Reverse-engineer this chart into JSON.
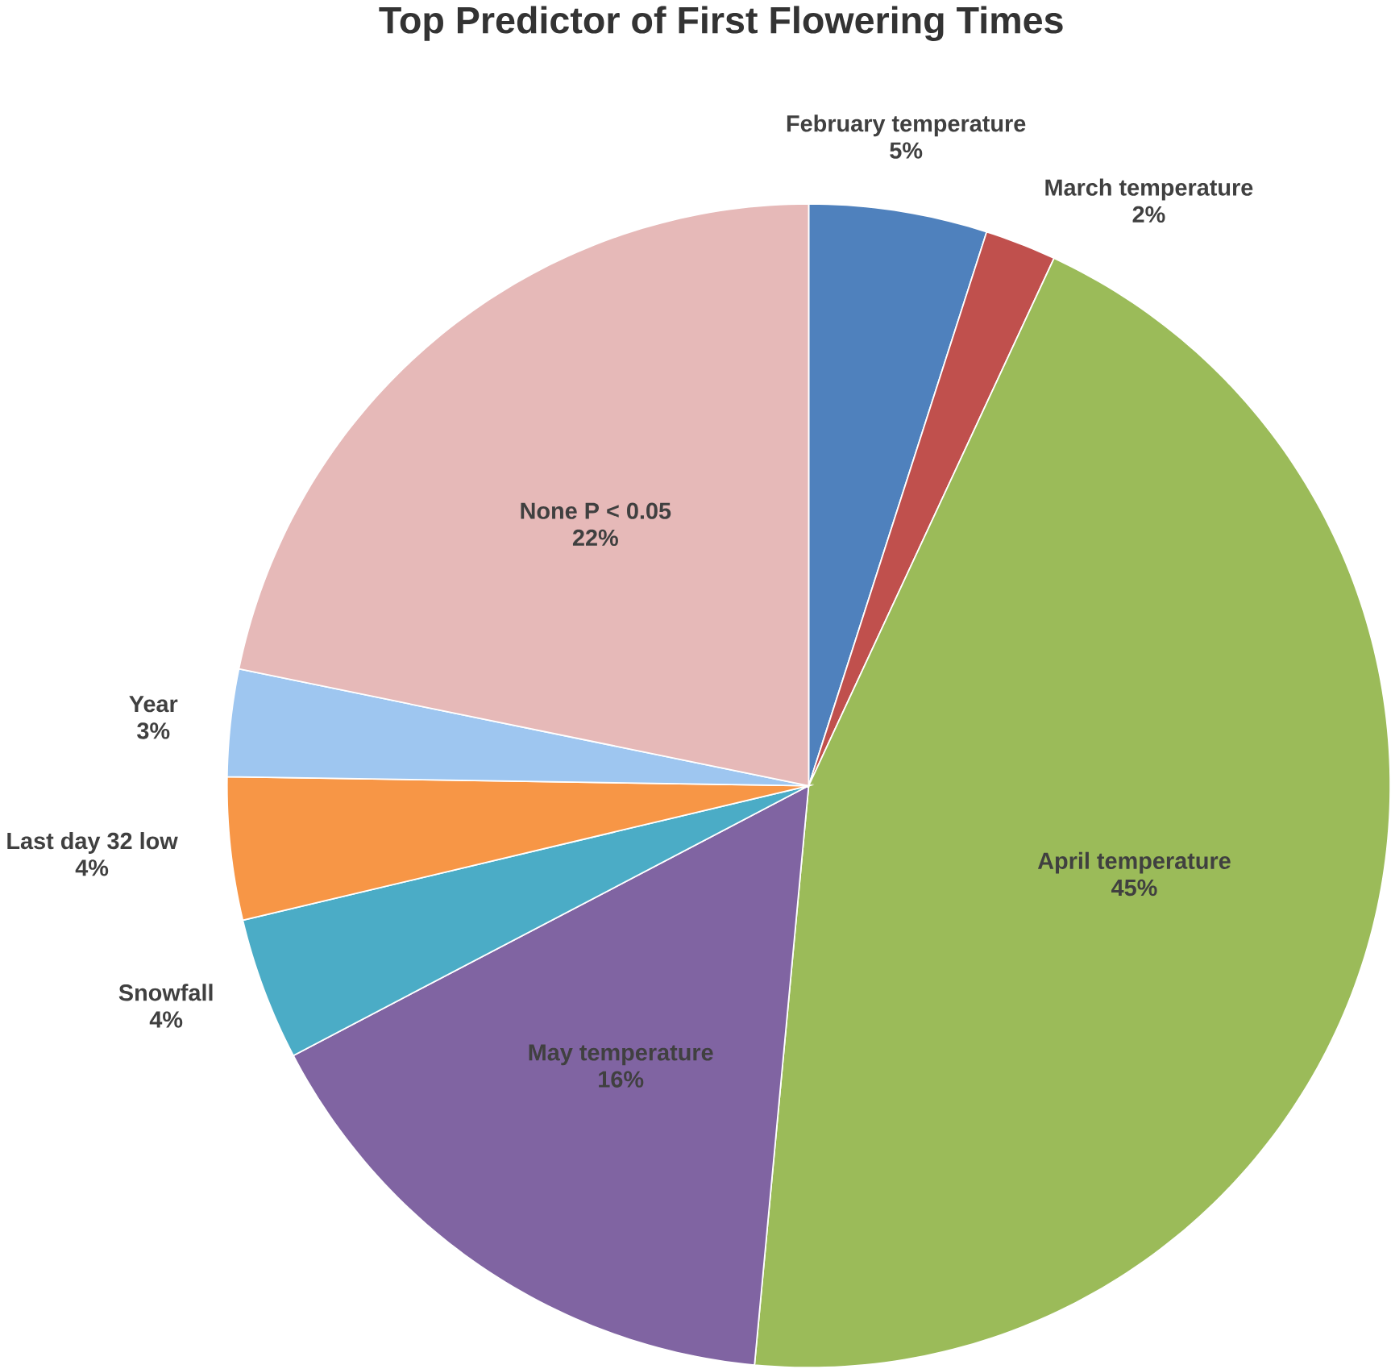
{
  "chart_data": {
    "type": "pie",
    "title": "Top Predictor of First Flowering Times",
    "categories": [
      "February temperature",
      "March temperature",
      "April temperature",
      "May temperature",
      "Snowfall",
      "Last day 32 low",
      "Year",
      "None P < 0.05"
    ],
    "values": [
      5,
      2,
      45,
      16,
      4,
      4,
      3,
      22
    ],
    "value_labels": [
      "5%",
      "2%",
      "45%",
      "16%",
      "4%",
      "4%",
      "3%",
      "22%"
    ],
    "colors": [
      "#4f81bd",
      "#c0504d",
      "#9bbb59",
      "#8064a2",
      "#4bacc6",
      "#f79646",
      "#9ec6f0",
      "#e6b9b8"
    ]
  }
}
